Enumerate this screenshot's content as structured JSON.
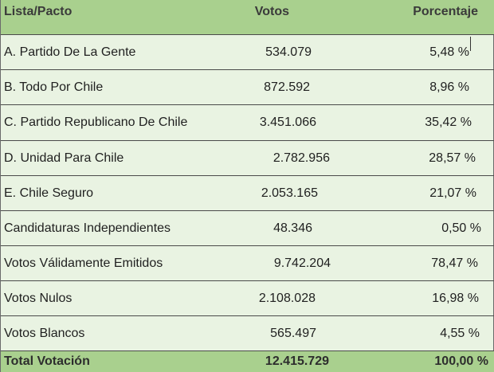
{
  "table": {
    "headers": {
      "name": "Lista/Pacto",
      "votes": "Votos",
      "pct": "Porcentaje"
    },
    "rows": [
      {
        "name": "A. Partido De La Gente",
        "votes": "534.079",
        "pct": "5,48 %"
      },
      {
        "name": "B. Todo Por Chile",
        "votes": "872.592",
        "pct": "8,96 %"
      },
      {
        "name": "C. Partido Republicano De Chile",
        "votes": "3.451.066",
        "pct": "35,42 %"
      },
      {
        "name": "D. Unidad Para Chile",
        "votes": "2.782.956",
        "pct": "28,57 %"
      },
      {
        "name": "E. Chile Seguro",
        "votes": "2.053.165",
        "pct": "21,07 %"
      },
      {
        "name": "Candidaturas Independientes",
        "votes": "48.346",
        "pct": "0,50 %"
      },
      {
        "name": "Votos Válidamente Emitidos",
        "votes": "9.742.204",
        "pct": "78,47 %"
      },
      {
        "name": "Votos Nulos",
        "votes": "2.108.028",
        "pct": "16,98 %"
      },
      {
        "name": "Votos Blancos",
        "votes": "565.497",
        "pct": "4,55 %"
      }
    ],
    "total": {
      "name": "Total Votación",
      "votes": "12.415.729",
      "pct": "100,00 %"
    }
  },
  "colors": {
    "header_bg": "#a9d08e",
    "body_bg": "#e9f3e2",
    "border": "#4a4a4a"
  }
}
